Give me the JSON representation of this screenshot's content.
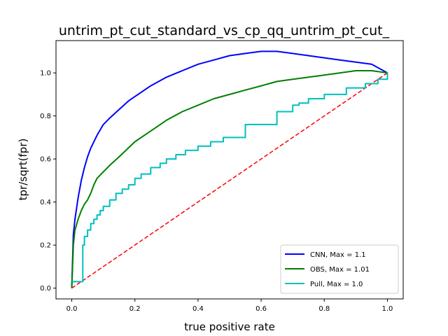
{
  "chart_data": {
    "type": "line",
    "title": "untrim_pt_cut_standard_vs_cp_qq_untrim_pt_cut_",
    "xlabel": "true positive rate",
    "ylabel": "tpr/sqrt(fpr)",
    "xlim": [
      -0.05,
      1.05
    ],
    "ylim": [
      -0.05,
      1.15
    ],
    "xticks": [
      0.0,
      0.2,
      0.4,
      0.6,
      0.8,
      1.0
    ],
    "xtick_labels": [
      "0.0",
      "0.2",
      "0.4",
      "0.6",
      "0.8",
      "1.0"
    ],
    "yticks": [
      0.0,
      0.2,
      0.4,
      0.6,
      0.8,
      1.0
    ],
    "ytick_labels": [
      "0.0",
      "0.2",
      "0.4",
      "0.6",
      "0.8",
      "1.0"
    ],
    "grid": false,
    "legend_position": "lower-right",
    "series": [
      {
        "name": "CNN, Max = 1.1",
        "color": "#0000ff",
        "style": "solid",
        "step": false,
        "x": [
          0.0,
          0.005,
          0.01,
          0.02,
          0.03,
          0.04,
          0.05,
          0.06,
          0.08,
          0.1,
          0.12,
          0.15,
          0.18,
          0.2,
          0.25,
          0.3,
          0.35,
          0.4,
          0.45,
          0.5,
          0.55,
          0.6,
          0.65,
          0.7,
          0.75,
          0.8,
          0.85,
          0.9,
          0.95,
          1.0
        ],
        "y": [
          0.0,
          0.25,
          0.32,
          0.42,
          0.5,
          0.56,
          0.61,
          0.65,
          0.71,
          0.76,
          0.79,
          0.83,
          0.87,
          0.89,
          0.94,
          0.98,
          1.01,
          1.04,
          1.06,
          1.08,
          1.09,
          1.1,
          1.1,
          1.09,
          1.08,
          1.07,
          1.06,
          1.05,
          1.04,
          1.0
        ]
      },
      {
        "name": "OBS, Max = 1.01",
        "color": "#008000",
        "style": "solid",
        "step": false,
        "x": [
          0.0,
          0.005,
          0.01,
          0.02,
          0.03,
          0.04,
          0.05,
          0.06,
          0.07,
          0.08,
          0.1,
          0.12,
          0.15,
          0.2,
          0.25,
          0.3,
          0.35,
          0.4,
          0.45,
          0.5,
          0.55,
          0.6,
          0.65,
          0.7,
          0.75,
          0.8,
          0.85,
          0.9,
          0.95,
          1.0
        ],
        "y": [
          0.0,
          0.2,
          0.27,
          0.32,
          0.36,
          0.39,
          0.41,
          0.44,
          0.48,
          0.51,
          0.54,
          0.57,
          0.61,
          0.68,
          0.73,
          0.78,
          0.82,
          0.85,
          0.88,
          0.9,
          0.92,
          0.94,
          0.96,
          0.97,
          0.98,
          0.99,
          1.0,
          1.01,
          1.01,
          1.0
        ]
      },
      {
        "name": "Pull, Max = 1.0",
        "color": "#00bfbf",
        "style": "solid",
        "step": true,
        "x": [
          0.0,
          0.035,
          0.04,
          0.05,
          0.06,
          0.07,
          0.08,
          0.09,
          0.1,
          0.12,
          0.14,
          0.16,
          0.18,
          0.2,
          0.22,
          0.25,
          0.28,
          0.3,
          0.33,
          0.36,
          0.4,
          0.44,
          0.48,
          0.55,
          0.65,
          0.7,
          0.72,
          0.75,
          0.8,
          0.87,
          0.93,
          0.97,
          1.0
        ],
        "y": [
          0.03,
          0.2,
          0.24,
          0.27,
          0.3,
          0.32,
          0.34,
          0.36,
          0.38,
          0.41,
          0.44,
          0.46,
          0.48,
          0.51,
          0.53,
          0.56,
          0.58,
          0.6,
          0.62,
          0.64,
          0.66,
          0.68,
          0.7,
          0.76,
          0.82,
          0.85,
          0.86,
          0.88,
          0.9,
          0.93,
          0.95,
          0.97,
          1.0
        ]
      },
      {
        "name": "",
        "color": "#ff0000",
        "style": "dashed",
        "step": false,
        "x": [
          0.0,
          1.0
        ],
        "y": [
          0.0,
          1.0
        ]
      }
    ]
  }
}
